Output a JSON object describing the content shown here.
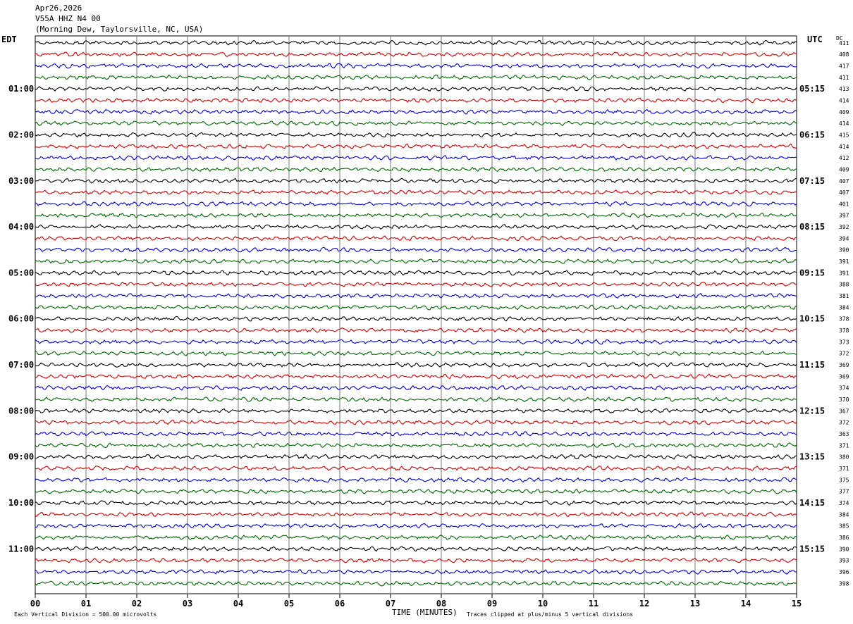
{
  "header": {
    "date": "Apr26,2026",
    "station": "V55A HHZ N4 00",
    "location": "(Morning Dew, Taylorsville, NC, USA)"
  },
  "left_axis_title": "EDT",
  "right_axis_title": "UTC",
  "dc_title": "DC",
  "x_axis_title": "TIME (MINUTES)",
  "footer_left": "Each Vertical Division =  500.00 microvolts",
  "footer_right": "Traces clipped at plus/minus 5 vertical divisions",
  "chart_data": {
    "type": "line",
    "description": "helicorder seismogram",
    "x_ticks": [
      "00",
      "01",
      "02",
      "03",
      "04",
      "05",
      "06",
      "07",
      "08",
      "09",
      "10",
      "11",
      "12",
      "13",
      "14",
      "15"
    ],
    "xlim": [
      0,
      15
    ],
    "trace_colors": [
      "#000000",
      "#cc0000",
      "#0000cc",
      "#006600"
    ],
    "edt_hour_labels": [
      "01:00",
      "02:00",
      "03:00",
      "04:00",
      "05:00",
      "06:00",
      "07:00",
      "08:00",
      "09:00",
      "10:00",
      "11:00"
    ],
    "utc_hour_labels": [
      "05:15",
      "06:15",
      "07:15",
      "08:15",
      "09:15",
      "10:15",
      "11:15",
      "12:15",
      "13:15",
      "14:15",
      "15:15"
    ],
    "hour_label_first_trace": 4,
    "hour_label_interval_traces": 4,
    "dc_offsets": [
      411,
      408,
      417,
      411,
      413,
      414,
      409,
      414,
      415,
      414,
      412,
      409,
      407,
      407,
      401,
      397,
      392,
      394,
      390,
      391,
      391,
      388,
      381,
      384,
      378,
      378,
      373,
      372,
      369,
      369,
      374,
      370,
      367,
      372,
      363,
      371,
      380,
      371,
      375,
      377,
      374,
      384,
      385,
      386,
      390,
      393,
      396,
      398
    ]
  }
}
